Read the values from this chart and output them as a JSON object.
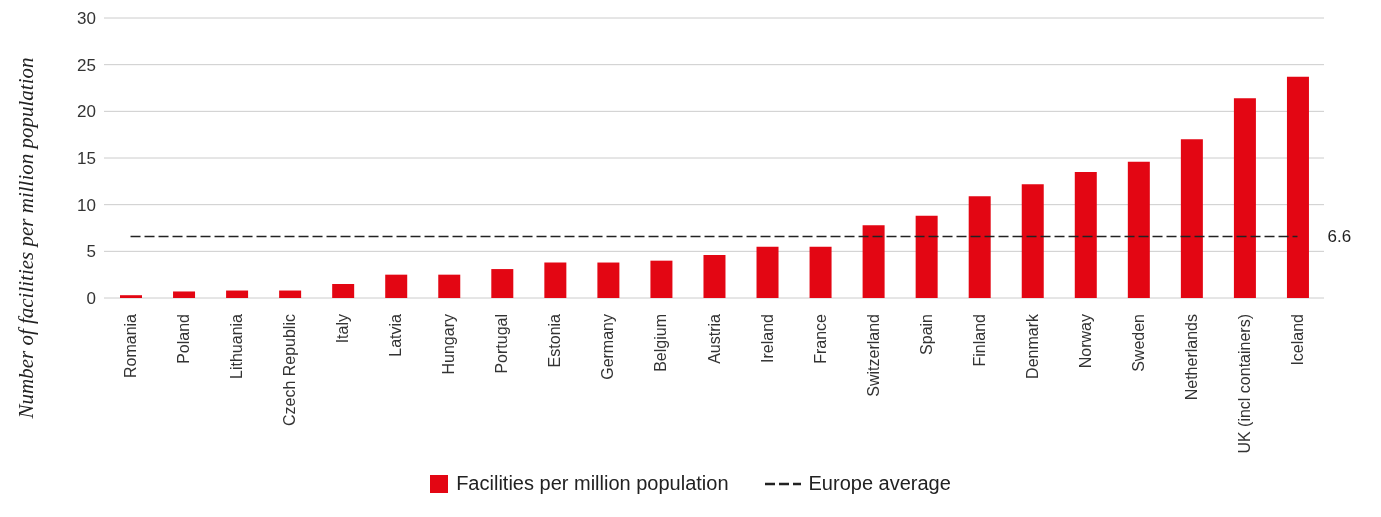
{
  "chart_data": {
    "type": "bar",
    "ylabel": "Number of facilities per million population",
    "categories": [
      "Romania",
      "Poland",
      "Lithuania",
      "Czech Republic",
      "Italy",
      "Latvia",
      "Hungary",
      "Portugal",
      "Estonia",
      "Germany",
      "Belgium",
      "Austria",
      "Ireland",
      "France",
      "Switzerland",
      "Spain",
      "Finland",
      "Denmark",
      "Norway",
      "Sweden",
      "Netherlands",
      "UK (incl containers)",
      "Iceland"
    ],
    "series": [
      {
        "name": "Facilities per million population",
        "color": "#e30613",
        "values": [
          0.3,
          0.7,
          0.8,
          0.8,
          1.5,
          2.5,
          2.5,
          3.1,
          3.8,
          3.8,
          4.0,
          4.6,
          5.5,
          5.5,
          7.8,
          8.8,
          10.9,
          12.2,
          13.5,
          14.6,
          17.0,
          21.4,
          23.7
        ]
      },
      {
        "name": "Europe average",
        "type": "line",
        "color": "#222222",
        "line_style": "dashed",
        "marker": "none",
        "values": [
          6.6,
          6.6,
          6.6,
          6.6,
          6.6,
          6.6,
          6.6,
          6.6,
          6.6,
          6.6,
          6.6,
          6.6,
          6.6,
          6.6,
          6.6,
          6.6,
          6.6,
          6.6,
          6.6,
          6.6,
          6.6,
          6.6,
          6.6
        ]
      }
    ],
    "annotations": [
      {
        "text": "6.6",
        "x": "Iceland",
        "y": 6.6
      }
    ],
    "ylim": [
      0,
      30
    ],
    "yticks": [
      0,
      5,
      10,
      15,
      20,
      25,
      30
    ],
    "grid": "y",
    "legend": "bottom"
  }
}
